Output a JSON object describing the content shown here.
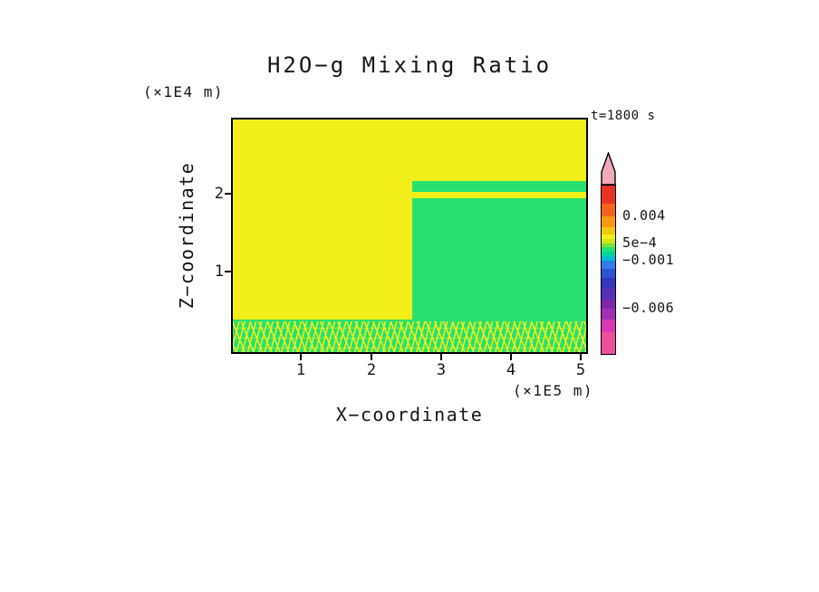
{
  "colors": {
    "field_yellow": "#f2ee1a",
    "field_green": "#27e070",
    "frame": "#000000",
    "text": "#161616"
  },
  "title": "H2O−g Mixing Ratio",
  "time_label": "t=1800 s",
  "axes": {
    "x_label": "X−coordinate",
    "x_unit": "(×1E5 m)",
    "x_ticks": [
      "1",
      "2",
      "3",
      "4",
      "5"
    ],
    "z_label": "Z−coordinate",
    "z_unit": "(×1E4 m)",
    "z_ticks": [
      "1",
      "2"
    ]
  },
  "colorbar": {
    "arrow_color": "#f2a8b8",
    "labels": [
      {
        "text": "0.004"
      },
      {
        "text": "5e−4"
      },
      {
        "text": "−0.001"
      },
      {
        "text": "−0.006"
      }
    ],
    "segments": [
      {
        "color": "#e63323",
        "h": 20
      },
      {
        "color": "#f3641c",
        "h": 14
      },
      {
        "color": "#f79a12",
        "h": 12
      },
      {
        "color": "#f2c70f",
        "h": 8
      },
      {
        "color": "#f2ee1a",
        "h": 5
      },
      {
        "color": "#cfe616",
        "h": 5
      },
      {
        "color": "#7ee03a",
        "h": 4
      },
      {
        "color": "#27e070",
        "h": 5
      },
      {
        "color": "#00d69e",
        "h": 5
      },
      {
        "color": "#00bcd4",
        "h": 5
      },
      {
        "color": "#2f7fe8",
        "h": 9
      },
      {
        "color": "#2b55d6",
        "h": 10
      },
      {
        "color": "#3337b8",
        "h": 12
      },
      {
        "color": "#5a2fb8",
        "h": 12
      },
      {
        "color": "#7a28a8",
        "h": 10
      },
      {
        "color": "#a030b0",
        "h": 12
      },
      {
        "color": "#d838b0",
        "h": 14
      },
      {
        "color": "#ec4f9c",
        "h": 24
      }
    ]
  },
  "chart_data": {
    "type": "heatmap",
    "title": "H2O−g Mixing Ratio",
    "time_annotation": "t=1800 s",
    "xlabel": "X−coordinate",
    "x_unit": "(×1E5 m)",
    "ylabel": "Z−coordinate",
    "y_unit": "(×1E4 m)",
    "xlim": [
      0,
      5.1
    ],
    "ylim": [
      0,
      3.0
    ],
    "x_ticks": [
      1,
      2,
      3,
      4,
      5
    ],
    "y_ticks": [
      1,
      2
    ],
    "grid": false,
    "legend_position": "colorbar-right",
    "colorbar_tick_labels": [
      "0.004",
      "5e−4",
      "−0.001",
      "−0.006"
    ],
    "regions": [
      {
        "name": "background field",
        "color": "yellow",
        "value_band": "yellow band of colorbar (between 5e−4 and 0.004)",
        "x_range": [
          0,
          5.1
        ],
        "z_range": [
          0.36,
          3.0
        ]
      },
      {
        "name": "lower-right block",
        "color": "green",
        "value_band": "green band of colorbar (between −0.001 and 5e−4)",
        "x_range": [
          2.6,
          5.1
        ],
        "z_range": [
          0.36,
          1.95
        ]
      },
      {
        "name": "elevated thin layer",
        "color": "green",
        "value_band": "green band of colorbar (between −0.001 and 5e−4)",
        "x_range": [
          2.6,
          5.1
        ],
        "z_range": [
          2.02,
          2.16
        ]
      },
      {
        "name": "surface speckled layer",
        "color": "green with yellow speckles",
        "x_range": [
          0,
          5.1
        ],
        "z_range": [
          0,
          0.36
        ]
      }
    ]
  }
}
